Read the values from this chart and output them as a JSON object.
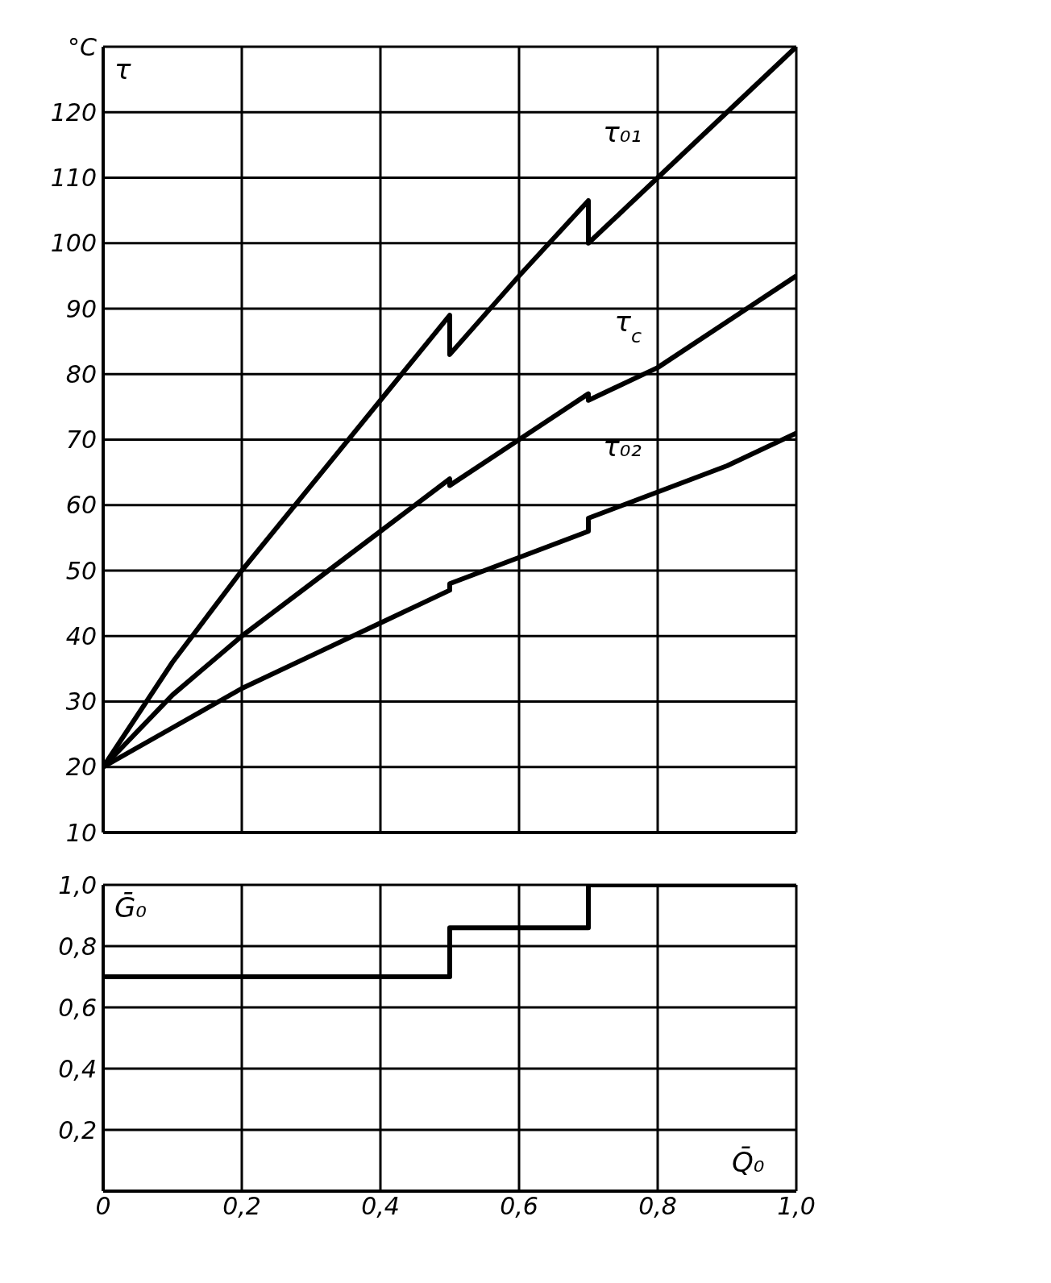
{
  "chart_data": [
    {
      "type": "line",
      "ylabel": "τ",
      "xlim": [
        0,
        1
      ],
      "xticks": [
        {
          "value": 0,
          "label": null
        },
        {
          "value": 0.2,
          "label": null
        },
        {
          "value": 0.4,
          "label": null
        },
        {
          "value": 0.6,
          "label": null
        },
        {
          "value": 0.8,
          "label": null
        },
        {
          "value": 1,
          "label": null
        }
      ],
      "ylim": [
        10,
        130
      ],
      "yticks": [
        10,
        20,
        30,
        40,
        50,
        60,
        70,
        80,
        90,
        100,
        110,
        120,
        {
          "value": 130,
          "label": "°C"
        }
      ],
      "tick_labels": "y",
      "grid": true,
      "marker": "none",
      "line_style": "solid",
      "series": [
        {
          "name": "τ₀₁",
          "color": "#000000",
          "x": [
            0,
            0.1,
            0.2,
            0.3,
            0.4,
            0.5,
            0.5,
            0.6,
            0.7,
            0.7,
            0.8,
            0.9,
            1.0
          ],
          "values": [
            20,
            36,
            50,
            63,
            76,
            89,
            83,
            95,
            106.5,
            100,
            110,
            120,
            130
          ]
        },
        {
          "name": "τ$_{c}$",
          "color": "#000000",
          "x": [
            0,
            0.1,
            0.2,
            0.3,
            0.4,
            0.5,
            0.5,
            0.6,
            0.7,
            0.7,
            0.8,
            0.9,
            1.0
          ],
          "values": [
            20,
            31,
            40,
            48,
            56,
            64,
            63,
            70,
            77,
            76,
            81,
            88,
            95
          ]
        },
        {
          "name": "τ₀₂",
          "color": "#000000",
          "x": [
            0,
            0.1,
            0.2,
            0.3,
            0.4,
            0.5,
            0.5,
            0.6,
            0.7,
            0.7,
            0.8,
            0.9,
            1.0
          ],
          "values": [
            20,
            26,
            32,
            37,
            42,
            47,
            48,
            52,
            56,
            58,
            62,
            66,
            71
          ]
        }
      ]
    },
    {
      "type": "step",
      "ylabel": "Ḡ₀",
      "xlabel": "Q̄₀",
      "xlim": [
        0,
        1
      ],
      "xticks": [
        0,
        {
          "value": 0.2,
          "label": "0,2"
        },
        {
          "value": 0.4,
          "label": "0,4"
        },
        {
          "value": 0.6,
          "label": "0,6"
        },
        {
          "value": 0.8,
          "label": "0,8"
        },
        {
          "value": 1,
          "label": "1,0"
        }
      ],
      "ylim": [
        0,
        1
      ],
      "yticks": [
        {
          "value": 0.2,
          "label": "0,2"
        },
        {
          "value": 0.4,
          "label": "0,4"
        },
        {
          "value": 0.6,
          "label": "0,6"
        },
        {
          "value": 0.8,
          "label": "0,8"
        },
        {
          "value": 1,
          "label": "1,0"
        }
      ],
      "grid": true,
      "marker": "none",
      "line_style": "solid",
      "series": [
        {
          "color": "#000000",
          "x": [
            0,
            0.5,
            0.7,
            1.0
          ],
          "values": [
            0.7,
            0.86,
            1.0,
            1.0
          ]
        }
      ]
    }
  ]
}
